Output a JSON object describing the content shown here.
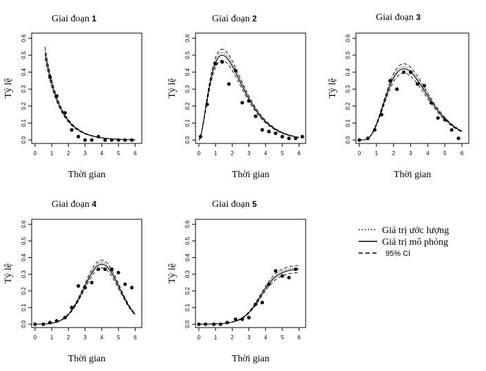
{
  "legend": {
    "items": [
      {
        "label": "Giá trị ước lượng",
        "style": "dotted"
      },
      {
        "label": "Giá trị mô phỏng",
        "style": "solid"
      },
      {
        "label": "95% CI",
        "style": "dashed"
      }
    ]
  },
  "chart_data": [
    {
      "type": "scatter",
      "title": "Giai đoạn",
      "title_number": "1",
      "xlabel": "Thời gian",
      "ylabel": "Tỷ lệ",
      "xlim": [
        -0.2,
        6.4
      ],
      "ylim": [
        -0.02,
        0.63
      ],
      "xticks": [
        "0",
        "1",
        "2",
        "3",
        "4",
        "5",
        "6"
      ],
      "yticks": [
        "0.0",
        "0.1",
        "0.2",
        "0.3",
        "0.4",
        "0.5",
        "0.6"
      ],
      "points": {
        "x": [
          0.9,
          1.3,
          1.8,
          2.2,
          2.6,
          3.0,
          3.4,
          3.8,
          4.2,
          4.6,
          5.0,
          5.4,
          5.8
        ],
        "y": [
          0.37,
          0.26,
          0.16,
          0.06,
          0.02,
          0.0,
          0.0,
          0.02,
          0.0,
          0.0,
          0.0,
          0.0,
          0.0
        ]
      },
      "curve": {
        "model": "decay",
        "a": 0.98,
        "k": 1.08,
        "start": 0.6
      }
    },
    {
      "type": "scatter",
      "title": "Giai đoạn",
      "title_number": "2",
      "xlabel": "Thời gian",
      "ylabel": "Tỷ lệ",
      "xlim": [
        -0.2,
        6.4
      ],
      "ylim": [
        -0.02,
        0.63
      ],
      "xticks": [
        "0",
        "1",
        "2",
        "3",
        "4",
        "5",
        "6"
      ],
      "yticks": [
        "0.0",
        "0.1",
        "0.2",
        "0.3",
        "0.4",
        "0.5",
        "0.6"
      ],
      "points": {
        "x": [
          0.1,
          0.5,
          1.0,
          1.4,
          1.8,
          2.2,
          2.6,
          3.0,
          3.4,
          3.8,
          4.2,
          4.6,
          5.0,
          5.4,
          5.8,
          6.2
        ],
        "y": [
          0.02,
          0.21,
          0.45,
          0.46,
          0.33,
          0.41,
          0.22,
          0.23,
          0.14,
          0.06,
          0.05,
          0.04,
          0.02,
          0.01,
          0.01,
          0.02
        ]
      },
      "curve": {
        "model": "gamma",
        "shape": 2.9,
        "peakx": 1.4,
        "peak": 0.5,
        "start": 0.0
      }
    },
    {
      "type": "scatter",
      "title": "Giai đoạn",
      "title_number": "3",
      "xlabel": "Thời gian",
      "ylabel": "Tỷ lệ",
      "xlim": [
        -0.2,
        6.4
      ],
      "ylim": [
        -0.02,
        0.63
      ],
      "xticks": [
        "0",
        "1",
        "2",
        "3",
        "4",
        "5",
        "6"
      ],
      "yticks": [
        "0.0",
        "0.1",
        "0.2",
        "0.3",
        "0.4",
        "0.5",
        "0.6"
      ],
      "points": {
        "x": [
          0.0,
          0.5,
          0.9,
          1.3,
          1.8,
          2.2,
          2.6,
          3.0,
          3.4,
          3.8,
          4.2,
          4.6,
          5.0,
          5.4,
          5.8
        ],
        "y": [
          0.0,
          0.01,
          0.06,
          0.15,
          0.35,
          0.3,
          0.4,
          0.4,
          0.33,
          0.32,
          0.22,
          0.13,
          0.12,
          0.06,
          0.01
        ]
      },
      "curve": {
        "model": "gamma",
        "shape": 5.5,
        "peakx": 2.6,
        "peak": 0.42,
        "start": 0.0
      }
    },
    {
      "type": "scatter",
      "title": "Giai đoạn",
      "title_number": "4",
      "xlabel": "Thời gian",
      "ylabel": "Tỷ lệ",
      "xlim": [
        -0.2,
        6.4
      ],
      "ylim": [
        -0.02,
        0.63
      ],
      "xticks": [
        "0",
        "1",
        "2",
        "3",
        "4",
        "5",
        "6"
      ],
      "yticks": [
        "0.0",
        "0.1",
        "0.2",
        "0.3",
        "0.4",
        "0.5",
        "0.6"
      ],
      "points": {
        "x": [
          0.0,
          0.5,
          0.9,
          1.3,
          1.8,
          2.2,
          2.6,
          3.0,
          3.4,
          3.8,
          4.2,
          4.6,
          5.0,
          5.4,
          5.8
        ],
        "y": [
          0.0,
          0.0,
          0.01,
          0.02,
          0.04,
          0.1,
          0.23,
          0.22,
          0.25,
          0.33,
          0.33,
          0.33,
          0.31,
          0.24,
          0.22
        ]
      },
      "curve": {
        "model": "gauss",
        "mu": 4.0,
        "sigma": 1.05,
        "peak": 0.36,
        "start": 0.0
      }
    },
    {
      "type": "scatter",
      "title": "Giai đoạn",
      "title_number": "5",
      "xlabel": "Thời gian",
      "ylabel": "Tỷ lệ",
      "xlim": [
        -0.2,
        6.4
      ],
      "ylim": [
        -0.02,
        0.63
      ],
      "xticks": [
        "0",
        "1",
        "2",
        "3",
        "4",
        "5",
        "6"
      ],
      "yticks": [
        "0.0",
        "0.1",
        "0.2",
        "0.3",
        "0.4",
        "0.5",
        "0.6"
      ],
      "points": {
        "x": [
          0.0,
          0.4,
          0.9,
          1.3,
          1.7,
          2.2,
          2.6,
          3.0,
          3.4,
          3.8,
          4.2,
          4.6,
          5.0,
          5.4,
          5.8
        ],
        "y": [
          0.0,
          0.0,
          0.0,
          0.0,
          0.01,
          0.03,
          0.03,
          0.04,
          0.12,
          0.13,
          0.24,
          0.32,
          0.29,
          0.28,
          0.33
        ]
      },
      "curve": {
        "model": "logistic",
        "L": 0.335,
        "k": 1.9,
        "x0": 3.7,
        "start": 0.0
      }
    }
  ]
}
